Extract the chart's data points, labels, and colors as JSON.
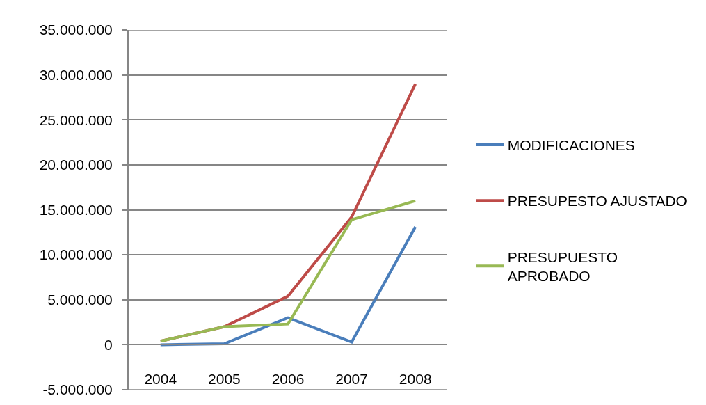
{
  "chart_data": {
    "type": "line",
    "categories": [
      "2004",
      "2005",
      "2006",
      "2007",
      "2008"
    ],
    "series": [
      {
        "name": "MODIFICACIONES",
        "color": "#4a7ebb",
        "values": [
          0,
          100000,
          3000000,
          300000,
          13100000
        ]
      },
      {
        "name": "PRESUPESTO AJUSTADO",
        "color": "#be4b48",
        "values": [
          400000,
          2000000,
          5400000,
          14200000,
          29000000
        ]
      },
      {
        "name": "PRESUPUESTO APROBADO",
        "color": "#98b954",
        "values": [
          400000,
          2000000,
          2300000,
          13900000,
          16000000
        ]
      }
    ],
    "ylim": [
      -5000000,
      35000000
    ],
    "yticks": [
      {
        "value": -5000000,
        "label": "-5.000.000"
      },
      {
        "value": 0,
        "label": "0"
      },
      {
        "value": 5000000,
        "label": "5.000.000"
      },
      {
        "value": 10000000,
        "label": "10.000.000"
      },
      {
        "value": 15000000,
        "label": "15.000.000"
      },
      {
        "value": 20000000,
        "label": "20.000.000"
      },
      {
        "value": 25000000,
        "label": "25.000.000"
      },
      {
        "value": 30000000,
        "label": "30.000.000"
      },
      {
        "value": 35000000,
        "label": "35.000.000"
      }
    ],
    "grid": "y",
    "legend": "right",
    "marker": "none",
    "line_style": "solid"
  }
}
